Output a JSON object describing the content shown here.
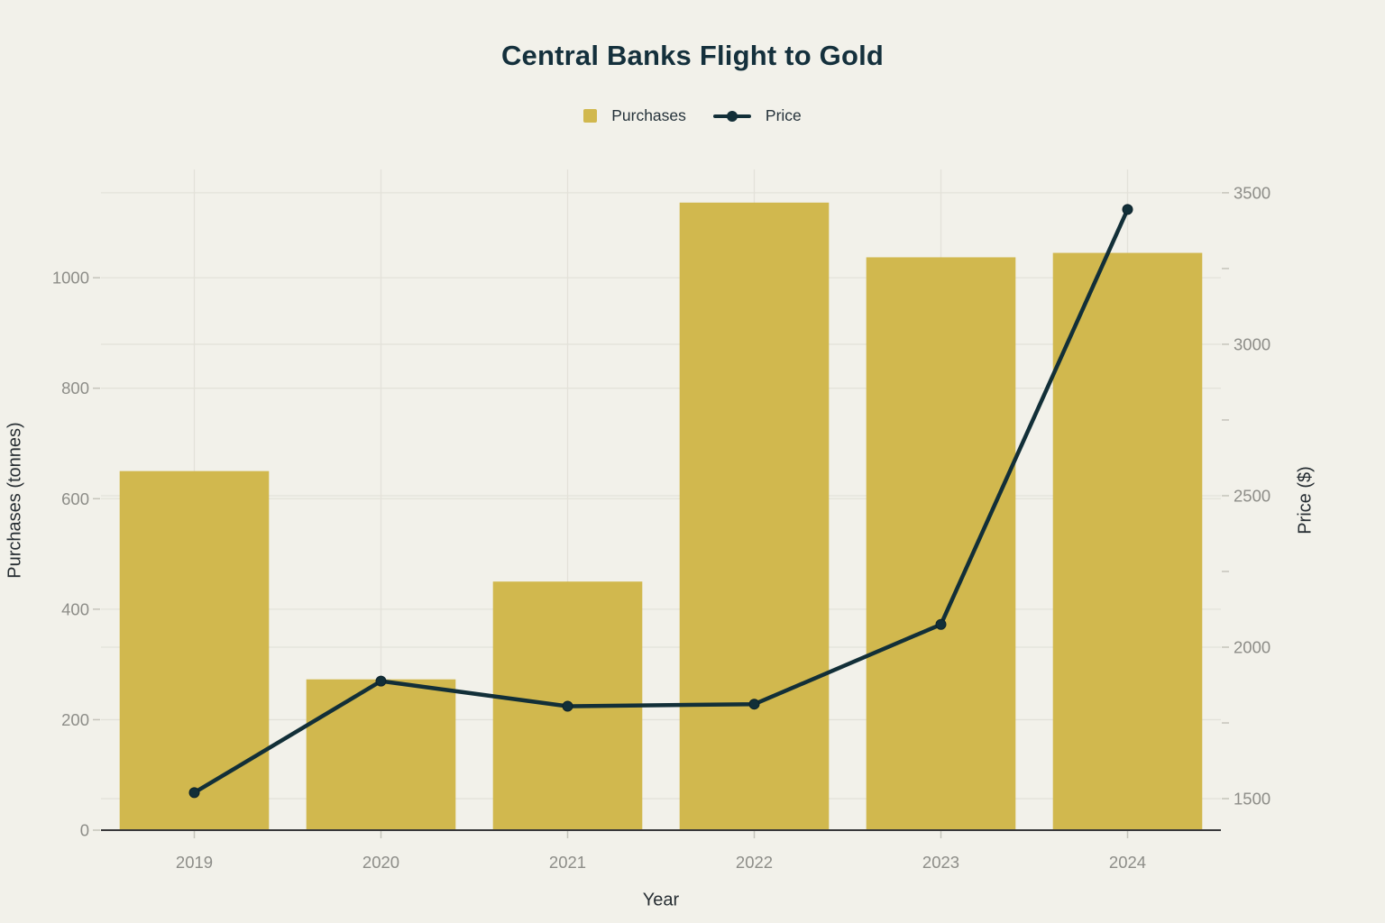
{
  "chart_data": {
    "type": "bar+line",
    "title": "Central Banks Flight to Gold",
    "categories": [
      "2019",
      "2020",
      "2021",
      "2022",
      "2023",
      "2024"
    ],
    "series": [
      {
        "name": "Purchases",
        "type": "bar",
        "axis": "left",
        "values": [
          650,
          273,
          450,
          1136,
          1037,
          1045
        ],
        "color": "#d1b84e"
      },
      {
        "name": "Price",
        "type": "line",
        "axis": "right",
        "values": [
          1520,
          1888,
          1805,
          1812,
          2075,
          3445
        ],
        "color": "#122f38"
      }
    ],
    "xlabel": "Year",
    "left_axis": {
      "title": "Purchases (tonnes)",
      "ticks": [
        0,
        200,
        400,
        600,
        800,
        1000
      ],
      "range": [
        0,
        1196
      ]
    },
    "right_axis": {
      "title": "Price ($)",
      "ticks": [
        1500,
        2000,
        2500,
        3000,
        3500
      ],
      "minor_step": 250,
      "range": [
        1396,
        3577
      ]
    },
    "legend": [
      "Purchases",
      "Price"
    ],
    "legend_position": "top-center",
    "grid": true
  },
  "colors": {
    "background": "#f2f1ea",
    "bar": "#d1b84e",
    "line": "#122f38",
    "title": "#14303c",
    "tick_label": "#8d8d88",
    "axis_title": "#272e33",
    "gridline": "#e3e2d9",
    "tick_mark": "#c5c4bb",
    "axis_line": "#38383a"
  }
}
